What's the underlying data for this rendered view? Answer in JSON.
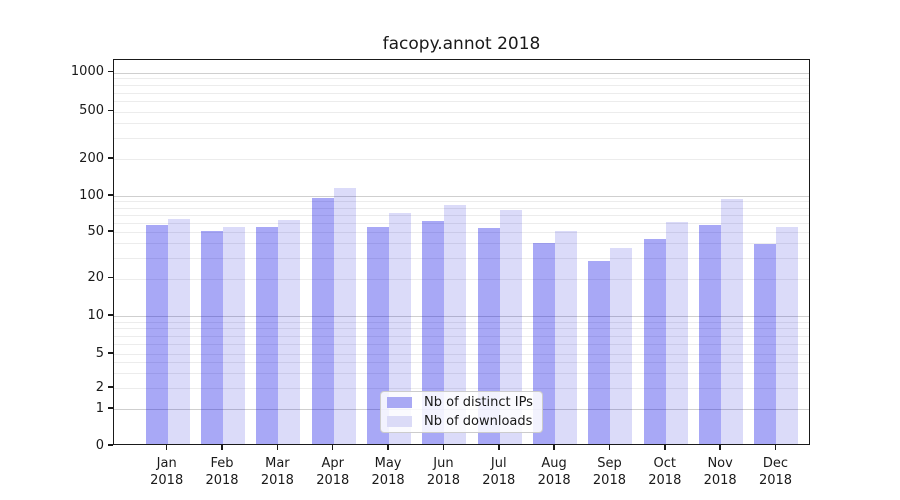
{
  "figure": {
    "title": "facopy.annot 2018"
  },
  "chart_data": {
    "type": "bar",
    "title": "facopy.annot 2018",
    "categories": [
      "Jan",
      "Feb",
      "Mar",
      "Apr",
      "May",
      "Jun",
      "Jul",
      "Aug",
      "Sep",
      "Oct",
      "Nov",
      "Dec"
    ],
    "category_year": "2018",
    "series": [
      {
        "name": "Nb of distinct IPs",
        "values": [
          55,
          49,
          53,
          92,
          53,
          59,
          52,
          39,
          27,
          42,
          55,
          38
        ],
        "color": "#a9a9f4",
        "fill": "rgba(0,0,230,0.34)"
      },
      {
        "name": "Nb of downloads",
        "values": [
          62,
          53,
          61,
          112,
          70,
          81,
          73,
          49,
          35,
          58,
          91,
          53
        ],
        "color": "#dbdbf7",
        "fill": "rgba(0,0,210,0.14)"
      }
    ],
    "yscale": "symlog",
    "yticks": [
      0,
      1,
      2,
      5,
      10,
      20,
      50,
      100,
      200,
      500,
      1000
    ],
    "ylim": [
      0,
      1260
    ],
    "xlabel": "",
    "ylabel": "",
    "grid": true,
    "legend": {
      "position": "lower center"
    }
  }
}
